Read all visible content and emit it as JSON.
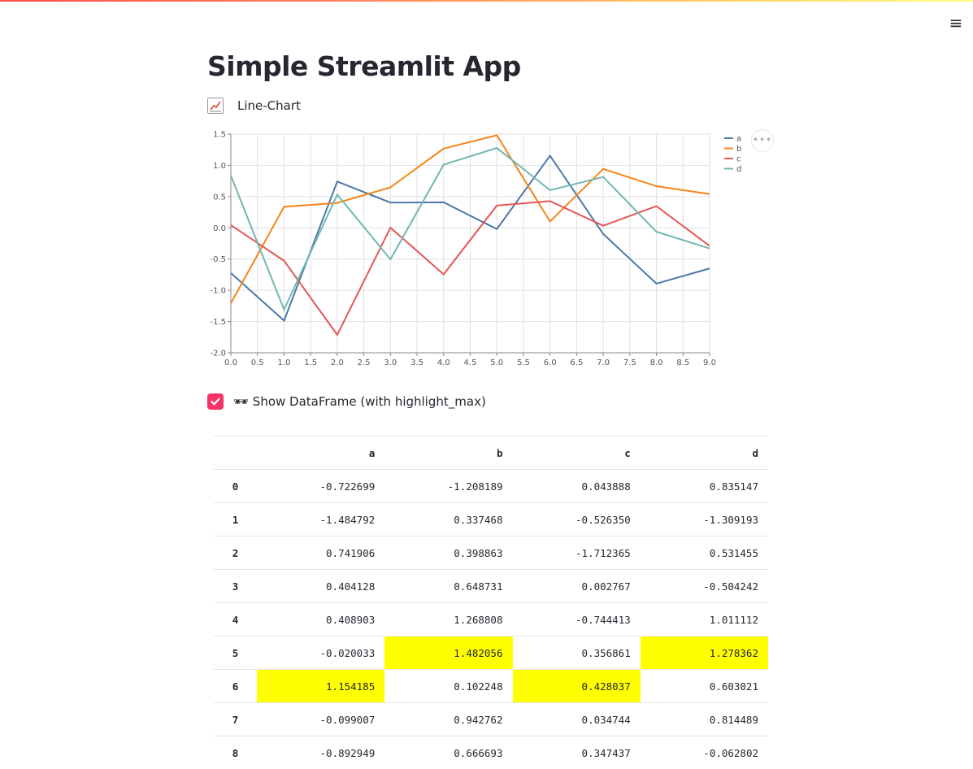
{
  "app": {
    "title": "Simple Streamlit App",
    "menu_icon": "hamburger-menu-icon"
  },
  "checkboxes": {
    "line_chart": {
      "label": "Line-Chart",
      "emoji": "📈",
      "checked": false
    },
    "dataframe": {
      "label": "🕶 Show DataFrame (with highlight_max)",
      "checked": true,
      "accent": "#f63366"
    }
  },
  "chart_menu_label": "•••",
  "chart_data": {
    "type": "line",
    "x": [
      0,
      1,
      2,
      3,
      4,
      5,
      6,
      7,
      8,
      9
    ],
    "xlim": [
      0,
      9
    ],
    "ylim": [
      -2,
      1.5
    ],
    "xticks": [
      "0.0",
      "0.5",
      "1.0",
      "1.5",
      "2.0",
      "2.5",
      "3.0",
      "3.5",
      "4.0",
      "4.5",
      "5.0",
      "5.5",
      "6.0",
      "6.5",
      "7.0",
      "7.5",
      "8.0",
      "8.5",
      "9.0"
    ],
    "yticks": [
      "1.5",
      "1.0",
      "0.5",
      "0.0",
      "-0.5",
      "-1.0",
      "-1.5",
      "-2.0"
    ],
    "grid": true,
    "legend_position": "right",
    "series": [
      {
        "name": "a",
        "color": "#4c78a8",
        "values": [
          -0.722699,
          -1.484792,
          0.741906,
          0.404128,
          0.408903,
          -0.020033,
          1.154185,
          -0.099007,
          -0.892949,
          -0.65
        ]
      },
      {
        "name": "b",
        "color": "#f58518",
        "values": [
          -1.208189,
          0.337468,
          0.398863,
          0.648731,
          1.268808,
          1.482056,
          0.102248,
          0.942762,
          0.666693,
          0.54
        ]
      },
      {
        "name": "c",
        "color": "#e45756",
        "values": [
          0.043888,
          -0.52635,
          -1.712365,
          0.002767,
          -0.744413,
          0.356861,
          0.428037,
          0.034744,
          0.347437,
          -0.29
        ]
      },
      {
        "name": "d",
        "color": "#72b7b2",
        "values": [
          0.835147,
          -1.309193,
          0.531455,
          -0.504242,
          1.011112,
          1.278362,
          0.603021,
          0.814489,
          -0.062802,
          -0.33
        ]
      }
    ]
  },
  "table": {
    "columns": [
      "",
      "a",
      "b",
      "c",
      "d"
    ],
    "highlight_color": "#ffff00",
    "rows": [
      {
        "index": "0",
        "cells": [
          "-0.722699",
          "-1.208189",
          "0.043888",
          "0.835147"
        ],
        "highlight": [
          false,
          false,
          false,
          false
        ]
      },
      {
        "index": "1",
        "cells": [
          "-1.484792",
          "0.337468",
          "-0.526350",
          "-1.309193"
        ],
        "highlight": [
          false,
          false,
          false,
          false
        ]
      },
      {
        "index": "2",
        "cells": [
          "0.741906",
          "0.398863",
          "-1.712365",
          "0.531455"
        ],
        "highlight": [
          false,
          false,
          false,
          false
        ]
      },
      {
        "index": "3",
        "cells": [
          "0.404128",
          "0.648731",
          "0.002767",
          "-0.504242"
        ],
        "highlight": [
          false,
          false,
          false,
          false
        ]
      },
      {
        "index": "4",
        "cells": [
          "0.408903",
          "1.268808",
          "-0.744413",
          "1.011112"
        ],
        "highlight": [
          false,
          false,
          false,
          false
        ]
      },
      {
        "index": "5",
        "cells": [
          "-0.020033",
          "1.482056",
          "0.356861",
          "1.278362"
        ],
        "highlight": [
          false,
          true,
          false,
          true
        ]
      },
      {
        "index": "6",
        "cells": [
          "1.154185",
          "0.102248",
          "0.428037",
          "0.603021"
        ],
        "highlight": [
          true,
          false,
          true,
          false
        ]
      },
      {
        "index": "7",
        "cells": [
          "-0.099007",
          "0.942762",
          "0.034744",
          "0.814489"
        ],
        "highlight": [
          false,
          false,
          false,
          false
        ]
      },
      {
        "index": "8",
        "cells": [
          "-0.892949",
          "0.666693",
          "0.347437",
          "-0.062802"
        ],
        "highlight": [
          false,
          false,
          false,
          false
        ]
      }
    ]
  }
}
